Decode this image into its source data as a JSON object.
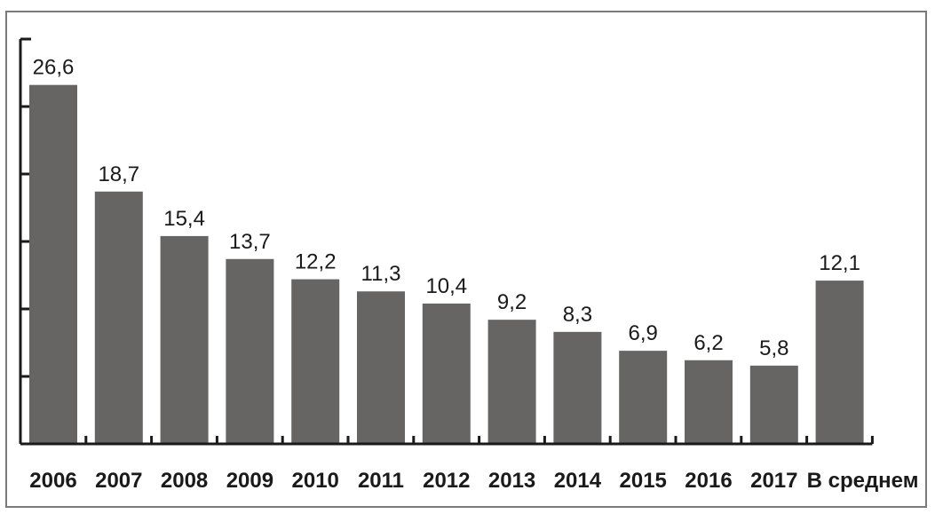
{
  "chart_data": {
    "type": "bar",
    "categories": [
      "2006",
      "2007",
      "2008",
      "2009",
      "2010",
      "2011",
      "2012",
      "2013",
      "2014",
      "2015",
      "2016",
      "2017",
      "В среднем"
    ],
    "values": [
      26.6,
      18.7,
      15.4,
      13.7,
      12.2,
      11.3,
      10.4,
      9.2,
      8.3,
      6.9,
      6.2,
      5.8,
      12.1
    ],
    "value_labels": [
      "26,6",
      "18,7",
      "15,4",
      "13,7",
      "12,2",
      "11,3",
      "10,4",
      "9,2",
      "8,3",
      "6,9",
      "6,2",
      "5,8",
      "12,1"
    ],
    "ylim": [
      0,
      30
    ],
    "y_major_ticks": [
      0,
      5,
      10,
      15,
      20,
      25,
      30
    ],
    "grid": false,
    "colors": {
      "bar": "#676563",
      "axis": "#1a1a1a"
    }
  }
}
